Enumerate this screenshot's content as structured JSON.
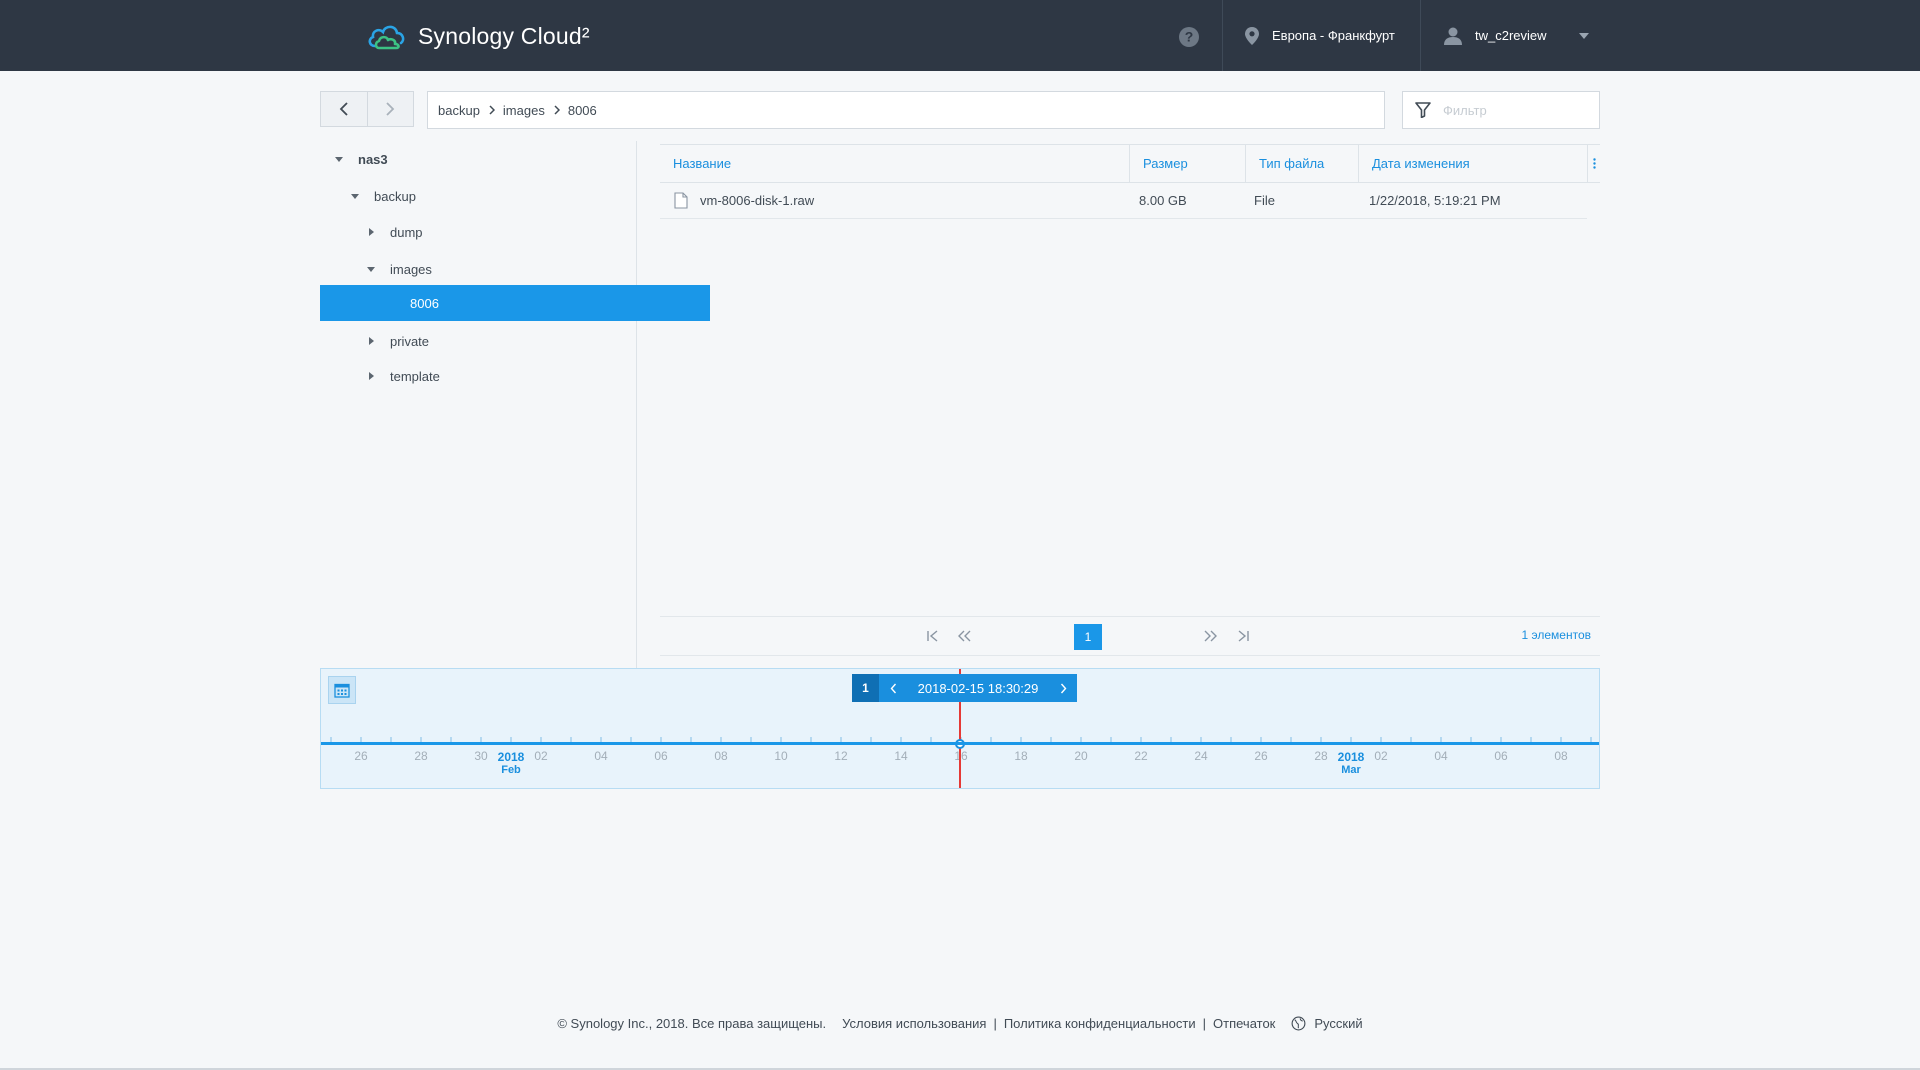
{
  "header": {
    "brand": "Synology Cloud²",
    "region": "Европа - Франкфурт",
    "username": "tw_c2review",
    "icons": [
      "cloud-logo-icon",
      "help-icon",
      "location-pin-icon",
      "user-icon",
      "chevron-down-icon"
    ]
  },
  "breadcrumb": [
    "backup",
    "images",
    "8006"
  ],
  "filter": {
    "placeholder": "Фильтр"
  },
  "tree": [
    {
      "label": "nas3",
      "level": 0,
      "expanded": true
    },
    {
      "label": "backup",
      "level": 1,
      "expanded": true
    },
    {
      "label": "dump",
      "level": 2,
      "expanded": false
    },
    {
      "label": "images",
      "level": 2,
      "expanded": true
    },
    {
      "label": "8006",
      "level": 3,
      "selected": true
    },
    {
      "label": "private",
      "level": 2,
      "expanded": false
    },
    {
      "label": "template",
      "level": 2,
      "expanded": false
    }
  ],
  "grid": {
    "columns": [
      "Название",
      "Размер",
      "Тип файла",
      "Дата изменения"
    ],
    "rows": [
      {
        "name": "vm-8006-disk-1.raw",
        "size": "8.00 GB",
        "type": "File",
        "modified": "1/22/2018, 5:19:21 PM"
      }
    ]
  },
  "pager": {
    "current_page": "1",
    "count_label": "1 элементов"
  },
  "timeline": {
    "version_number": "1",
    "current_datetime": "2018-02-15 18:30:29",
    "tick_labels": [
      "26",
      "28",
      "30",
      "02",
      "04",
      "06",
      "08",
      "10",
      "12",
      "14",
      "16",
      "18",
      "20",
      "22",
      "24",
      "26",
      "28",
      "02",
      "04",
      "06",
      "08"
    ],
    "month_markers": [
      {
        "year": "2018",
        "month": "Feb"
      },
      {
        "year": "2018",
        "month": "Mar"
      }
    ]
  },
  "footer": {
    "copyright": "© Synology Inc., 2018. Все права защищены.",
    "terms": "Условия использования",
    "privacy": "Политика конфиденциальности",
    "imprint": "Отпечаток",
    "language": "Русский"
  },
  "colors": {
    "accent": "#1a97e8",
    "topbar": "#2e3744",
    "timeline_marker": "#e53935"
  }
}
